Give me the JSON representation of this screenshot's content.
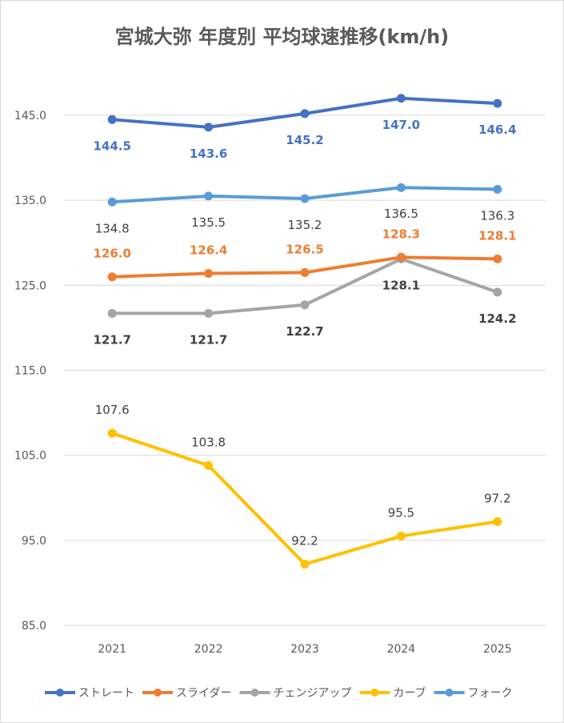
{
  "chart_data": {
    "type": "line",
    "title": "宮城大弥 年度別 平均球速推移(km/h)",
    "categories": [
      "2021",
      "2022",
      "2023",
      "2024",
      "2025"
    ],
    "ylim": [
      85,
      150
    ],
    "yticks": [
      "85.0",
      "95.0",
      "105.0",
      "115.0",
      "125.0",
      "135.0",
      "145.0"
    ],
    "grid": true,
    "legend_position": "bottom",
    "series": [
      {
        "name": "ストレート",
        "color": "#4472c4",
        "values": [
          144.5,
          143.6,
          145.2,
          147.0,
          146.4
        ],
        "labels": [
          "144.5",
          "143.6",
          "145.2",
          "147.0",
          "146.4"
        ]
      },
      {
        "name": "スライダー",
        "color": "#ed7d31",
        "values": [
          126.0,
          126.4,
          126.5,
          128.3,
          128.1
        ],
        "labels": [
          "126.0",
          "126.4",
          "126.5",
          "128.3",
          "128.1"
        ]
      },
      {
        "name": "チェンジアップ",
        "color": "#a5a5a5",
        "values": [
          121.7,
          121.7,
          122.7,
          128.1,
          124.2
        ],
        "labels": [
          "121.7",
          "121.7",
          "122.7",
          "128.1",
          "124.2"
        ]
      },
      {
        "name": "カーブ",
        "color": "#ffc000",
        "values": [
          107.6,
          103.8,
          92.2,
          95.5,
          97.2
        ],
        "labels": [
          "107.6",
          "103.8",
          "92.2",
          "95.5",
          "97.2"
        ]
      },
      {
        "name": "フォーク",
        "color": "#5b9bd5",
        "values": [
          134.8,
          135.5,
          135.2,
          136.5,
          136.3
        ],
        "labels": [
          "134.8",
          "135.5",
          "135.2",
          "136.5",
          "136.3"
        ]
      }
    ]
  }
}
